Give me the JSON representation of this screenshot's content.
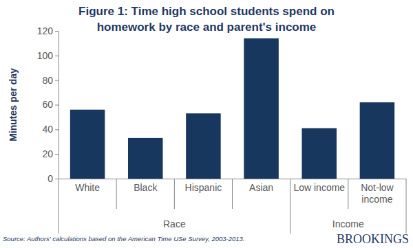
{
  "chart_data": {
    "type": "bar",
    "title": "Figure 1: Time high school students spend on homework by race and parent's income",
    "y_label": "Minutes per day",
    "categories": [
      "White",
      "Black",
      "Hispanic",
      "Asian",
      "Low income",
      "Not-low income"
    ],
    "values": [
      56,
      33,
      53,
      114,
      41,
      62
    ],
    "color": "#17375e",
    "groups": [
      {
        "name": "Race",
        "categories": [
          "White",
          "Black",
          "Hispanic",
          "Asian"
        ]
      },
      {
        "name": "Income",
        "categories": [
          "Low income",
          "Not-low income"
        ]
      }
    ],
    "ylim": [
      0,
      120
    ],
    "yticks": [
      0,
      20,
      40,
      60,
      80,
      100,
      120
    ],
    "grid": false,
    "source": "Source: Authors' calculations based on the American Time  USe Survey, 2003-2013.",
    "annotations": [
      "BROOKINGS"
    ]
  }
}
